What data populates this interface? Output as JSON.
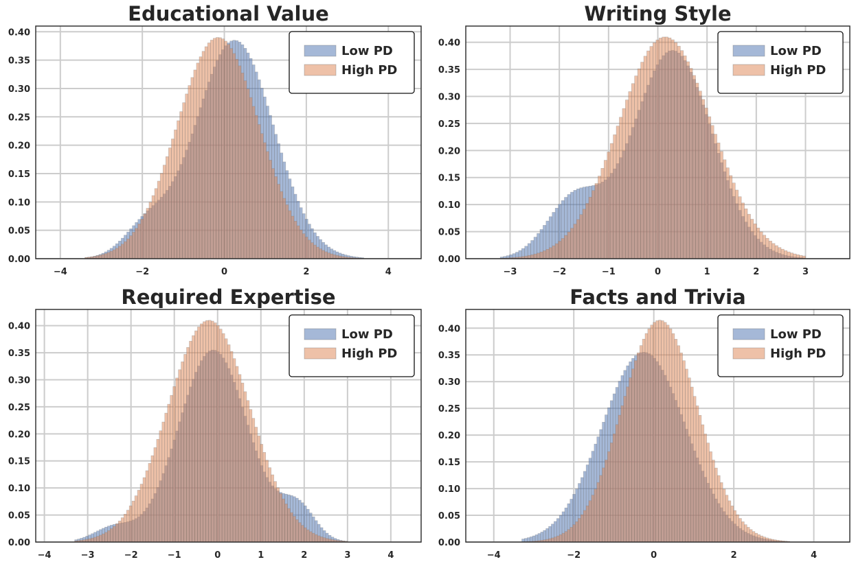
{
  "chart_data": [
    {
      "type": "bar",
      "title": "Educational Value",
      "xlabel": "",
      "ylabel": "",
      "xlim": [
        -4.6,
        4.8
      ],
      "ylim": [
        0,
        0.41
      ],
      "xticks": [
        -4,
        -2,
        0,
        2,
        4
      ],
      "yticks": [
        0.0,
        0.05,
        0.1,
        0.15,
        0.2,
        0.25,
        0.3,
        0.35,
        0.4
      ],
      "grid": true,
      "legend_position": "top-right",
      "colors": {
        "Low PD": "#4c72b0",
        "High PD": "#dd8452"
      },
      "series": [
        {
          "name": "Low PD",
          "components": [
            {
              "w": 0.88,
              "mu": 0.25,
              "sigma": 0.95
            },
            {
              "w": 0.12,
              "mu": -1.9,
              "sigma": 0.55
            }
          ],
          "peak": 0.385,
          "range": [
            -3.4,
            3.4
          ]
        },
        {
          "name": "High PD",
          "components": [
            {
              "w": 1.0,
              "mu": -0.15,
              "sigma": 1.0
            }
          ],
          "peak": 0.39,
          "range": [
            -3.4,
            3.4
          ]
        }
      ]
    },
    {
      "type": "bar",
      "title": "Writing Style",
      "xlabel": "",
      "ylabel": "",
      "xlim": [
        -3.9,
        3.9
      ],
      "ylim": [
        0,
        0.43
      ],
      "xticks": [
        -3,
        -2,
        -1,
        0,
        1,
        2,
        3
      ],
      "yticks": [
        0.0,
        0.05,
        0.1,
        0.15,
        0.2,
        0.25,
        0.3,
        0.35,
        0.4
      ],
      "grid": true,
      "legend_position": "top-right",
      "colors": {
        "Low PD": "#4c72b0",
        "High PD": "#dd8452"
      },
      "series": [
        {
          "name": "Low PD",
          "components": [
            {
              "w": 0.78,
              "mu": 0.3,
              "sigma": 0.8
            },
            {
              "w": 0.22,
              "mu": -1.7,
              "sigma": 0.55
            }
          ],
          "peak": 0.385,
          "range": [
            -3.2,
            3.0
          ]
        },
        {
          "name": "High PD",
          "components": [
            {
              "w": 1.0,
              "mu": 0.15,
              "sigma": 0.95
            }
          ],
          "peak": 0.41,
          "range": [
            -3.2,
            3.0
          ]
        }
      ]
    },
    {
      "type": "bar",
      "title": "Required Expertise",
      "xlabel": "",
      "ylabel": "",
      "xlim": [
        -4.2,
        4.7
      ],
      "ylim": [
        0,
        0.43
      ],
      "xticks": [
        -4,
        -3,
        -2,
        -1,
        0,
        1,
        2,
        3,
        4
      ],
      "yticks": [
        0.0,
        0.05,
        0.1,
        0.15,
        0.2,
        0.25,
        0.3,
        0.35,
        0.4
      ],
      "grid": true,
      "legend_position": "top-right",
      "colors": {
        "Low PD": "#4c72b0",
        "High PD": "#dd8452"
      },
      "series": [
        {
          "name": "Low PD",
          "components": [
            {
              "w": 0.8,
              "mu": -0.1,
              "sigma": 0.8
            },
            {
              "w": 0.14,
              "mu": 1.85,
              "sigma": 0.4
            },
            {
              "w": 0.06,
              "mu": -2.4,
              "sigma": 0.45
            }
          ],
          "peak": 0.355,
          "range": [
            -3.3,
            3.0
          ]
        },
        {
          "name": "High PD",
          "components": [
            {
              "w": 1.0,
              "mu": -0.2,
              "sigma": 0.95
            }
          ],
          "peak": 0.41,
          "range": [
            -3.3,
            3.0
          ]
        }
      ]
    },
    {
      "type": "bar",
      "title": "Facts and Trivia",
      "xlabel": "",
      "ylabel": "",
      "xlim": [
        -4.7,
        4.9
      ],
      "ylim": [
        0,
        0.435
      ],
      "xticks": [
        -4,
        -2,
        0,
        2,
        4
      ],
      "yticks": [
        0.0,
        0.05,
        0.1,
        0.15,
        0.2,
        0.25,
        0.3,
        0.35,
        0.4
      ],
      "grid": true,
      "legend_position": "top-right",
      "colors": {
        "Low PD": "#4c72b0",
        "High PD": "#dd8452"
      },
      "series": [
        {
          "name": "Low PD",
          "components": [
            {
              "w": 1.0,
              "mu": -0.25,
              "sigma": 1.05
            }
          ],
          "peak": 0.355,
          "range": [
            -3.3,
            3.4
          ]
        },
        {
          "name": "High PD",
          "components": [
            {
              "w": 1.0,
              "mu": 0.15,
              "sigma": 0.95
            }
          ],
          "peak": 0.415,
          "range": [
            -3.3,
            3.4
          ]
        }
      ]
    }
  ]
}
